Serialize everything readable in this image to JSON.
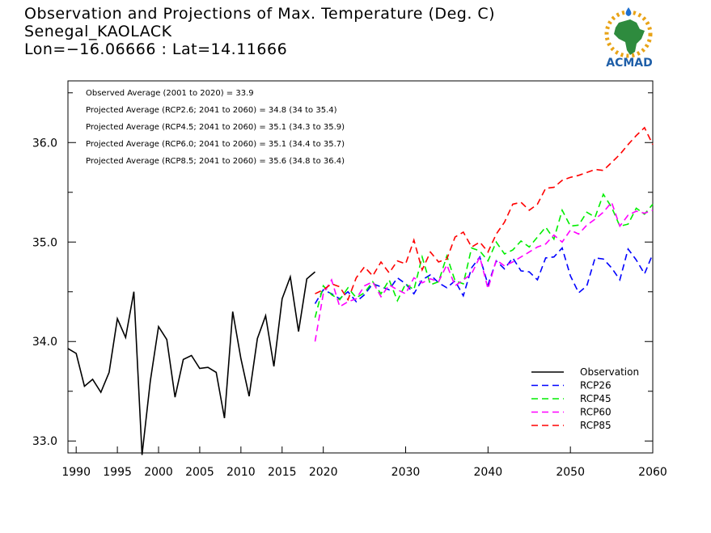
{
  "header": {
    "title": "Observation and Projections of Max. Temperature (Deg. C)",
    "station": "Senegal_KAOLACK",
    "coords": "Lon=−16.06666 : Lat=14.11666"
  },
  "logo": {
    "text": "ACMAD",
    "icon": "africa-map-water-drop-logo"
  },
  "annotations": [
    "Observed Average (2001 to 2020) = 33.9",
    "Projected Average (RCP2.6; 2041 to 2060) = 34.8 (34 to 35.4)",
    "Projected Average (RCP4.5; 2041 to 2060) = 35.1 (34.3 to 35.9)",
    "Projected Average (RCP6.0; 2041 to 2060) = 35.1 (34.4 to 35.7)",
    "Projected Average (RCP8.5; 2041 to 2060) = 35.6 (34.8 to 36.4)"
  ],
  "chart_data": {
    "type": "line",
    "xlim": [
      1989,
      2060
    ],
    "ylim": [
      32.88,
      36.62
    ],
    "x_ticks": [
      1990,
      1995,
      2000,
      2005,
      2010,
      2015,
      2020,
      2030,
      2040,
      2050,
      2060
    ],
    "y_ticks": [
      33.0,
      34.0,
      35.0,
      36.0
    ],
    "y_tick_labels": [
      "33.0",
      "34.0",
      "35.0",
      "36.0"
    ],
    "grid": false,
    "legend_position": "bottom-right",
    "series": [
      {
        "name": "Observation",
        "color": "#000000",
        "dashed": false,
        "x": [
          1989,
          1990,
          1991,
          1992,
          1993,
          1994,
          1995,
          1996,
          1997,
          1998,
          1999,
          2000,
          2001,
          2002,
          2003,
          2004,
          2005,
          2006,
          2007,
          2008,
          2009,
          2010,
          2011,
          2012,
          2013,
          2014,
          2015,
          2016,
          2017,
          2018,
          2019
        ],
        "values": [
          33.93,
          33.88,
          33.55,
          33.62,
          33.49,
          33.69,
          34.23,
          34.04,
          34.5,
          32.86,
          33.6,
          34.15,
          34.02,
          33.44,
          33.82,
          33.86,
          33.73,
          33.74,
          33.69,
          33.23,
          34.3,
          33.83,
          33.45,
          34.03,
          34.26,
          33.75,
          34.43,
          34.65,
          34.1,
          34.63,
          34.7
        ]
      },
      {
        "name": "RCP26",
        "color": "#0000ff",
        "dashed": true,
        "x": [
          2019,
          2020,
          2021,
          2022,
          2023,
          2024,
          2025,
          2026,
          2027,
          2028,
          2029,
          2030,
          2031,
          2032,
          2033,
          2034,
          2035,
          2036,
          2037,
          2038,
          2039,
          2040,
          2041,
          2042,
          2043,
          2044,
          2045,
          2046,
          2047,
          2048,
          2049,
          2050,
          2051,
          2052,
          2053,
          2054,
          2055,
          2056,
          2057,
          2058,
          2059,
          2060
        ],
        "values": [
          34.38,
          34.52,
          34.48,
          34.43,
          34.5,
          34.4,
          34.47,
          34.58,
          34.55,
          34.52,
          34.64,
          34.58,
          34.48,
          34.62,
          34.67,
          34.59,
          34.54,
          34.61,
          34.46,
          34.74,
          34.85,
          34.57,
          34.81,
          34.73,
          34.84,
          34.71,
          34.7,
          34.62,
          34.84,
          34.85,
          34.94,
          34.66,
          34.49,
          34.56,
          34.84,
          34.83,
          34.74,
          34.62,
          34.93,
          34.82,
          34.68,
          34.88
        ]
      },
      {
        "name": "RCP45",
        "color": "#00ee00",
        "dashed": true,
        "x": [
          2019,
          2020,
          2021,
          2022,
          2023,
          2024,
          2025,
          2026,
          2027,
          2028,
          2029,
          2030,
          2031,
          2032,
          2033,
          2034,
          2035,
          2036,
          2037,
          2038,
          2039,
          2040,
          2041,
          2042,
          2043,
          2044,
          2045,
          2046,
          2047,
          2048,
          2049,
          2050,
          2051,
          2052,
          2053,
          2054,
          2055,
          2056,
          2057,
          2058,
          2059,
          2060
        ],
        "values": [
          34.24,
          34.56,
          34.47,
          34.42,
          34.54,
          34.44,
          34.49,
          34.6,
          34.48,
          34.62,
          34.41,
          34.58,
          34.52,
          34.85,
          34.57,
          34.6,
          34.86,
          34.61,
          34.58,
          34.94,
          34.91,
          34.81,
          35.0,
          34.88,
          34.92,
          35.01,
          34.95,
          35.05,
          35.15,
          35.03,
          35.32,
          35.16,
          35.17,
          35.3,
          35.25,
          35.48,
          35.35,
          35.16,
          35.18,
          35.34,
          35.28,
          35.38
        ]
      },
      {
        "name": "RCP60",
        "color": "#ff00ff",
        "dashed": true,
        "x": [
          2019,
          2020,
          2021,
          2022,
          2023,
          2024,
          2025,
          2026,
          2027,
          2028,
          2029,
          2030,
          2031,
          2032,
          2033,
          2034,
          2035,
          2036,
          2037,
          2038,
          2039,
          2040,
          2041,
          2042,
          2043,
          2044,
          2045,
          2046,
          2047,
          2048,
          2049,
          2050,
          2051,
          2052,
          2053,
          2054,
          2055,
          2056,
          2057,
          2058,
          2059,
          2060
        ],
        "values": [
          34.0,
          34.48,
          34.62,
          34.35,
          34.4,
          34.43,
          34.56,
          34.6,
          34.45,
          34.57,
          34.52,
          34.48,
          34.64,
          34.59,
          34.63,
          34.6,
          34.77,
          34.56,
          34.62,
          34.68,
          34.85,
          34.53,
          34.82,
          34.76,
          34.8,
          34.85,
          34.9,
          34.95,
          34.98,
          35.07,
          35.0,
          35.12,
          35.08,
          35.17,
          35.23,
          35.3,
          35.4,
          35.16,
          35.27,
          35.31,
          35.29,
          35.32
        ]
      },
      {
        "name": "RCP85",
        "color": "#ff0000",
        "dashed": true,
        "x": [
          2019,
          2020,
          2021,
          2022,
          2023,
          2024,
          2025,
          2026,
          2027,
          2028,
          2029,
          2030,
          2031,
          2032,
          2033,
          2034,
          2035,
          2036,
          2037,
          2038,
          2039,
          2040,
          2041,
          2042,
          2043,
          2044,
          2045,
          2046,
          2047,
          2048,
          2049,
          2050,
          2051,
          2052,
          2053,
          2054,
          2055,
          2056,
          2057,
          2058,
          2059,
          2060
        ],
        "values": [
          34.48,
          34.52,
          34.58,
          34.55,
          34.42,
          34.64,
          34.75,
          34.66,
          34.8,
          34.69,
          34.81,
          34.78,
          35.02,
          34.72,
          34.9,
          34.8,
          34.83,
          35.05,
          35.1,
          34.95,
          35.0,
          34.9,
          35.08,
          35.2,
          35.38,
          35.4,
          35.32,
          35.38,
          35.54,
          35.55,
          35.62,
          35.65,
          35.67,
          35.7,
          35.73,
          35.72,
          35.8,
          35.88,
          35.98,
          36.07,
          36.15,
          35.98
        ]
      }
    ]
  }
}
